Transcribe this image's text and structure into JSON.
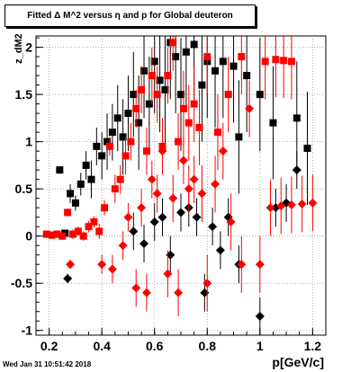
{
  "chart_data": {
    "type": "scatter",
    "title": "Fitted Δ M^2 versus η and p for Global deuteron",
    "xlabel": "p[GeV/c]",
    "ylabel": "z_dM2",
    "xlim": [
      0.15,
      1.25
    ],
    "ylim": [
      -1.05,
      2.12
    ],
    "x_ticks": [
      "0.2",
      "0.4",
      "0.6",
      "0.8",
      "1",
      "1.2"
    ],
    "y_ticks": [
      "-1",
      "-0.5",
      "0",
      "0.5",
      "1",
      "1.5",
      "2"
    ],
    "grid": true,
    "colors": {
      "black_series": "#000000",
      "red_series": "#ff0000"
    },
    "series": [
      {
        "marker": "square",
        "color": "#000000",
        "points": [
          [
            0.24,
            0.7,
            0.04
          ],
          [
            0.26,
            0.03,
            0.03
          ],
          [
            0.28,
            0.45,
            0.1
          ],
          [
            0.3,
            0.35,
            0.08
          ],
          [
            0.32,
            0.55,
            0.12
          ],
          [
            0.34,
            0.75,
            0.15
          ],
          [
            0.36,
            0.6,
            0.2
          ],
          [
            0.38,
            0.95,
            0.2
          ],
          [
            0.4,
            0.85,
            0.25
          ],
          [
            0.42,
            1.0,
            0.3
          ],
          [
            0.44,
            1.1,
            0.3
          ],
          [
            0.46,
            1.25,
            0.35
          ],
          [
            0.48,
            1.05,
            0.4
          ],
          [
            0.5,
            1.3,
            0.4
          ],
          [
            0.52,
            1.5,
            0.45
          ],
          [
            0.54,
            1.2,
            0.5
          ],
          [
            0.56,
            1.75,
            0.5
          ],
          [
            0.58,
            1.4,
            0.5
          ],
          [
            0.6,
            1.85,
            0.55
          ],
          [
            0.62,
            1.65,
            0.55
          ],
          [
            0.64,
            1.55,
            0.6
          ],
          [
            0.66,
            2.05,
            0.6
          ],
          [
            0.68,
            1.9,
            0.6
          ],
          [
            0.7,
            1.5,
            0.6
          ],
          [
            0.72,
            1.95,
            0.6
          ],
          [
            0.75,
            2.03,
            0.6
          ],
          [
            0.78,
            1.6,
            0.6
          ],
          [
            0.8,
            1.85,
            0.6
          ],
          [
            0.83,
            1.75,
            0.6
          ],
          [
            0.86,
            1.85,
            0.6
          ],
          [
            0.9,
            1.8,
            0.6
          ],
          [
            0.92,
            1.05,
            0.6
          ],
          [
            0.95,
            1.7,
            0.6
          ],
          [
            1.0,
            1.5,
            0.6
          ],
          [
            1.05,
            1.2,
            0.6
          ],
          [
            1.14,
            1.25,
            0.6
          ],
          [
            1.18,
            0.93,
            0.6
          ]
        ]
      },
      {
        "marker": "diamond",
        "color": "#000000",
        "points": [
          [
            0.27,
            -0.45,
            0.05
          ],
          [
            0.52,
            0.05,
            0.2
          ],
          [
            0.56,
            -0.08,
            0.2
          ],
          [
            0.6,
            0.15,
            0.2
          ],
          [
            0.63,
            0.2,
            0.2
          ],
          [
            0.66,
            -0.2,
            0.2
          ],
          [
            0.7,
            0.25,
            0.2
          ],
          [
            0.73,
            0.3,
            0.2
          ],
          [
            0.76,
            0.2,
            0.2
          ],
          [
            0.79,
            -0.6,
            0.2
          ],
          [
            0.82,
            0.1,
            0.2
          ],
          [
            0.85,
            -0.15,
            0.2
          ],
          [
            0.88,
            0.2,
            0.2
          ],
          [
            0.92,
            -0.3,
            0.2
          ],
          [
            1.0,
            -0.85,
            0.2
          ],
          [
            1.06,
            0.3,
            0.2
          ],
          [
            1.1,
            0.35,
            0.2
          ],
          [
            1.14,
            0.7,
            0.2
          ]
        ]
      },
      {
        "marker": "square",
        "color": "#ff0000",
        "points": [
          [
            0.19,
            0.02,
            0.04
          ],
          [
            0.21,
            0.01,
            0.04
          ],
          [
            0.23,
            0.02,
            0.04
          ],
          [
            0.25,
            0.0,
            0.04
          ],
          [
            0.27,
            0.25,
            0.04
          ],
          [
            0.29,
            0.02,
            0.05
          ],
          [
            0.31,
            0.05,
            0.05
          ],
          [
            0.33,
            0.0,
            0.05
          ],
          [
            0.35,
            0.1,
            0.06
          ],
          [
            0.37,
            0.15,
            0.06
          ],
          [
            0.39,
            0.05,
            0.08
          ],
          [
            0.41,
            0.3,
            0.08
          ],
          [
            0.43,
            0.95,
            0.1
          ],
          [
            0.45,
            0.5,
            0.15
          ],
          [
            0.47,
            0.6,
            0.15
          ],
          [
            0.49,
            0.85,
            0.2
          ],
          [
            0.51,
            1.0,
            0.2
          ],
          [
            0.53,
            1.35,
            0.2
          ],
          [
            0.55,
            1.55,
            0.25
          ],
          [
            0.57,
            0.9,
            0.25
          ],
          [
            0.59,
            1.7,
            0.3
          ],
          [
            0.61,
            1.5,
            0.3
          ],
          [
            0.63,
            0.95,
            0.3
          ],
          [
            0.65,
            1.7,
            0.3
          ],
          [
            0.67,
            2.05,
            0.3
          ],
          [
            0.69,
            1.0,
            0.3
          ],
          [
            0.71,
            1.35,
            0.4
          ],
          [
            0.73,
            1.2,
            0.4
          ],
          [
            0.75,
            1.4,
            0.4
          ],
          [
            0.77,
            1.15,
            0.4
          ],
          [
            0.8,
            1.9,
            0.4
          ],
          [
            0.84,
            1.1,
            0.4
          ],
          [
            0.88,
            1.5,
            0.4
          ],
          [
            0.93,
            1.9,
            0.4
          ],
          [
            1.02,
            1.85,
            0.4
          ],
          [
            1.06,
            1.87,
            0.4
          ],
          [
            1.09,
            1.86,
            0.4
          ],
          [
            1.12,
            1.85,
            0.4
          ]
        ]
      },
      {
        "marker": "diamond",
        "color": "#ff0000",
        "points": [
          [
            0.28,
            -0.3,
            0.05
          ],
          [
            0.4,
            -0.3,
            0.1
          ],
          [
            0.44,
            -0.35,
            0.15
          ],
          [
            0.48,
            -0.1,
            0.15
          ],
          [
            0.5,
            0.2,
            0.15
          ],
          [
            0.53,
            -0.55,
            0.2
          ],
          [
            0.55,
            0.3,
            0.2
          ],
          [
            0.57,
            -0.6,
            0.2
          ],
          [
            0.59,
            0.6,
            0.2
          ],
          [
            0.61,
            0.45,
            0.2
          ],
          [
            0.63,
            0.9,
            0.25
          ],
          [
            0.65,
            -0.4,
            0.25
          ],
          [
            0.67,
            0.4,
            0.25
          ],
          [
            0.69,
            -0.6,
            0.25
          ],
          [
            0.71,
            0.8,
            0.25
          ],
          [
            0.73,
            0.5,
            0.25
          ],
          [
            0.75,
            0.6,
            0.25
          ],
          [
            0.78,
            0.45,
            0.3
          ],
          [
            0.8,
            -0.5,
            0.3
          ],
          [
            0.83,
            0.55,
            0.3
          ],
          [
            0.86,
            0.9,
            0.3
          ],
          [
            0.89,
            0.15,
            0.3
          ],
          [
            0.93,
            -0.3,
            0.3
          ],
          [
            0.96,
            1.35,
            0.3
          ],
          [
            1.0,
            -0.3,
            0.3
          ],
          [
            1.04,
            0.3,
            0.3
          ],
          [
            1.08,
            0.32,
            0.3
          ],
          [
            1.12,
            0.33,
            0.3
          ],
          [
            1.16,
            0.34,
            0.3
          ],
          [
            1.2,
            0.35,
            0.3
          ]
        ]
      }
    ]
  },
  "footer": {
    "timestamp": "Wed Jan 31 10:51:42 2018"
  }
}
